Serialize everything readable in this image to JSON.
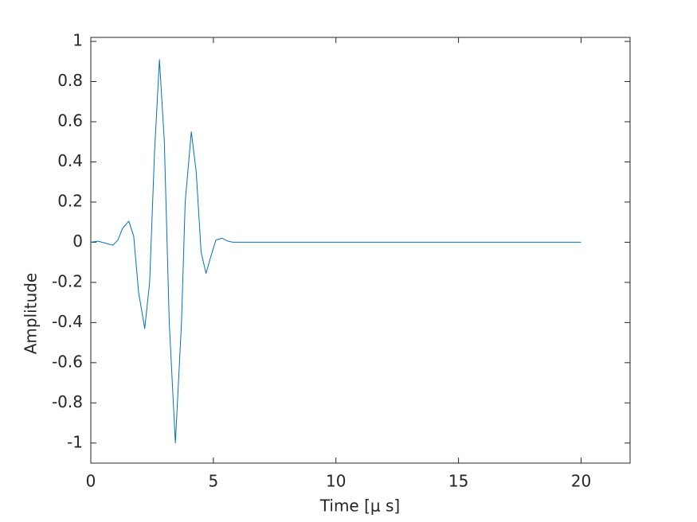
{
  "chart_data": {
    "type": "line",
    "xlabel": "Time [μ s]",
    "ylabel": "Amplitude",
    "x": [
      0,
      0.3,
      0.6,
      0.9,
      1.1,
      1.3,
      1.55,
      1.75,
      1.95,
      2.2,
      2.4,
      2.6,
      2.8,
      3.0,
      3.2,
      3.45,
      3.7,
      3.85,
      4.1,
      4.3,
      4.5,
      4.7,
      4.9,
      5.1,
      5.35,
      5.6,
      5.8,
      20
    ],
    "series": [
      {
        "color": "#0072bd",
        "values": [
          0,
          0.005,
          -0.005,
          -0.015,
          0.01,
          0.07,
          0.105,
          0.03,
          -0.25,
          -0.43,
          -0.2,
          0.45,
          0.91,
          0.5,
          -0.4,
          -1.0,
          -0.4,
          0.2,
          0.55,
          0.35,
          -0.05,
          -0.155,
          -0.07,
          0.01,
          0.02,
          0.005,
          0,
          0
        ]
      }
    ],
    "xlim": [
      0,
      22
    ],
    "ylim": [
      -1.1,
      1.02
    ],
    "xticks": [
      0,
      5,
      10,
      15,
      20
    ],
    "yticks": [
      -1,
      -0.8,
      -0.6,
      -0.4,
      -0.2,
      0,
      0.2,
      0.4,
      0.6,
      0.8,
      1
    ],
    "grid": false
  }
}
